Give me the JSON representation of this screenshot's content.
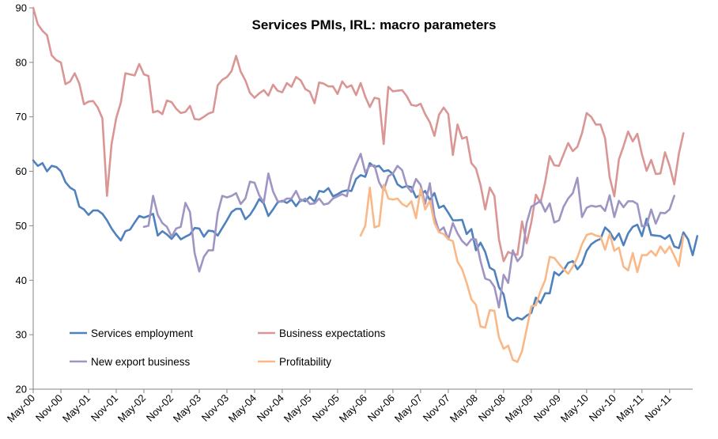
{
  "chart_data": {
    "type": "line",
    "title": "Services PMIs, IRL: macro parameters",
    "xlabel": "",
    "ylabel": "",
    "ylim": [
      20,
      90
    ],
    "yticks": [
      20,
      30,
      40,
      50,
      60,
      70,
      80,
      90
    ],
    "grid": false,
    "legend_position": "bottom-left",
    "x_tick_labels": [
      "May-00",
      "Nov-00",
      "May-01",
      "Nov-01",
      "May-02",
      "Nov-02",
      "May-03",
      "Nov-03",
      "May-04",
      "Nov-04",
      "May-05",
      "Nov-05",
      "May-06",
      "Nov-06",
      "May-07",
      "Nov-07",
      "May-08",
      "Nov-08",
      "May-09",
      "Nov-09",
      "May-10",
      "Nov-10",
      "May-11",
      "Nov-11"
    ],
    "x_start": "May-00",
    "x_end": "Apr-12",
    "series": [
      {
        "name": "Services employment",
        "color": "#4f81bd",
        "start": "May-00",
        "values": [
          62,
          61,
          61.5,
          60,
          61,
          60.8,
          60,
          58,
          57,
          56.5,
          53.5,
          53,
          52,
          52.8,
          52.8,
          52.2,
          51,
          49.5,
          48.3,
          47.3,
          49,
          49.3,
          50.6,
          51.8,
          51.5,
          51.8,
          52.2,
          48.2,
          49,
          48.4,
          47.6,
          48.6,
          47.5,
          48,
          48.4,
          49.6,
          49.5,
          48,
          49.1,
          49,
          48.2,
          49.6,
          51,
          52.5,
          53.1,
          53.1,
          51.2,
          52,
          53.3,
          54.9,
          54.1,
          51.8,
          53,
          54.3,
          54.6,
          54.2,
          54.8,
          53.6,
          54.8,
          54.5,
          55.3,
          54.4,
          56.4,
          56.2,
          56.9,
          55.4,
          55.8,
          56.3,
          56.5,
          56.4,
          58.6,
          59.3,
          59,
          61.5,
          60.8,
          61,
          60,
          60.2,
          59.5,
          57.6,
          57,
          57.3,
          57.1,
          55.2,
          55.7,
          56.4,
          54.7,
          56,
          53.3,
          53.7,
          52.4,
          51,
          51,
          51.1,
          48.5,
          49.4,
          45.5,
          46.9,
          45.2,
          42.3,
          41.8,
          38.7,
          37.4,
          33.3,
          32.6,
          33.1,
          32.8,
          33.5,
          34,
          36.8,
          35.8,
          37.6,
          37.6,
          41.5,
          40.9,
          41.8,
          43.2,
          43.5,
          42,
          43,
          45.4,
          46.6,
          47.2,
          47.6,
          49.7,
          48.9,
          47.4,
          48.6,
          46.4,
          48.6,
          49.8,
          50.2,
          48.1,
          51.3,
          48.3,
          48.2,
          48.1,
          47.6,
          48.3,
          46.2,
          45.9,
          48.8,
          47.5,
          44.6,
          48.1
        ]
      },
      {
        "name": "Business expectations",
        "color": "#d99694",
        "start": "May-00",
        "values": [
          90,
          87,
          85.8,
          85,
          81.3,
          80.4,
          80,
          76,
          76.5,
          78,
          76.1,
          72.3,
          72.8,
          72.9,
          71.7,
          69.7,
          55.5,
          65,
          69.8,
          72.6,
          78,
          77.8,
          77.6,
          79.7,
          77.8,
          77.5,
          70.8,
          71.1,
          70.5,
          73,
          72.7,
          71.5,
          70.7,
          70.9,
          72,
          69.6,
          69.5,
          70,
          70.6,
          70.9,
          75.8,
          76.8,
          77.3,
          78.4,
          81.2,
          78.3,
          76.7,
          74.4,
          73.5,
          74.3,
          74.9,
          73.9,
          75.9,
          74.8,
          74.5,
          76.2,
          75.5,
          77.3,
          76.7,
          75.1,
          74.6,
          72.5,
          76.3,
          76.1,
          75.6,
          75.6,
          74.2,
          76.5,
          75.4,
          75.8,
          74,
          76.2,
          73.7,
          71.8,
          73.5,
          73.3,
          65,
          75.5,
          74.7,
          74.8,
          74.9,
          73.8,
          72.2,
          72,
          72.4,
          70.5,
          69,
          66.5,
          70.4,
          71.7,
          70.5,
          63,
          68.6,
          66,
          66.3,
          61.5,
          60.5,
          57.5,
          53,
          57,
          55.5,
          47.5,
          43.5,
          45.2,
          44.8,
          44.7,
          50.8,
          46.8,
          50.6,
          55.7,
          54.2,
          58,
          62.8,
          61.1,
          61,
          63.1,
          65.2,
          63.7,
          64.5,
          67,
          70.7,
          70,
          68.6,
          68.6,
          66.1,
          58.9,
          55.4,
          62.2,
          64.6,
          67.3,
          65.5,
          66.9,
          63.1,
          60.1,
          62.1,
          59.5,
          59.6,
          63.5,
          61,
          57.6,
          63.2,
          67
        ]
      },
      {
        "name": "New export business",
        "color": "#a094c3",
        "start": "May-00",
        "values": [
          null,
          null,
          null,
          null,
          null,
          null,
          null,
          null,
          null,
          null,
          null,
          null,
          null,
          null,
          null,
          null,
          null,
          null,
          null,
          null,
          null,
          null,
          null,
          null,
          49.8,
          50,
          55.5,
          52,
          50.5,
          49.8,
          48,
          49.5,
          49.8,
          54.2,
          52.5,
          45,
          41.6,
          44.3,
          45.5,
          45.5,
          52.3,
          55.5,
          55.2,
          55.5,
          56,
          54,
          55,
          58.1,
          57.9,
          55.6,
          54.3,
          59.6,
          56.3,
          54.5,
          54.4,
          55,
          55,
          56.4,
          54.5,
          55,
          54,
          54.1,
          55,
          53.9,
          54.1,
          55,
          55.4,
          55.8,
          55.4,
          59.2,
          61.3,
          63.2,
          59.8,
          61,
          61.1,
          58,
          56.5,
          59.1,
          59.6,
          61,
          60.2,
          57.3,
          56.2,
          58.6,
          57.5,
          54,
          57.8,
          51.7,
          49,
          49.7,
          47.5,
          50.5,
          48.6,
          47.2,
          46.4,
          47.5,
          47.5,
          43.5,
          40.3,
          40,
          38.8,
          35,
          41,
          39.5,
          45.5,
          43.5,
          44.5,
          50.5,
          53.5,
          54,
          54.6,
          52.6,
          54.1,
          50.6,
          51,
          53.5,
          55,
          56,
          58.8,
          51.6,
          53.3,
          53.7,
          53.5,
          53.7,
          52.7,
          55.6,
          51.6,
          54.6,
          53.4,
          54.5,
          54.5,
          54,
          49.9,
          50.1,
          53,
          50.4,
          52.4,
          52.3,
          53,
          55.5
        ]
      },
      {
        "name": "Profitability",
        "color": "#fab887",
        "start": "May-00",
        "values": [
          null,
          null,
          null,
          null,
          null,
          null,
          null,
          null,
          null,
          null,
          null,
          null,
          null,
          null,
          null,
          null,
          null,
          null,
          null,
          null,
          null,
          null,
          null,
          null,
          null,
          null,
          null,
          null,
          null,
          null,
          null,
          null,
          null,
          null,
          null,
          null,
          null,
          null,
          null,
          null,
          null,
          null,
          null,
          null,
          null,
          null,
          null,
          null,
          null,
          null,
          null,
          null,
          null,
          null,
          null,
          null,
          null,
          null,
          null,
          null,
          null,
          null,
          null,
          null,
          null,
          null,
          null,
          null,
          null,
          null,
          null,
          48.2,
          50,
          57,
          49.7,
          50,
          57.5,
          55,
          54.8,
          55,
          54,
          53.5,
          54.5,
          51.4,
          56.8,
          53,
          54.6,
          50.5,
          48.8,
          48.5,
          47.5,
          47.2,
          43.4,
          42,
          39.5,
          36.5,
          35.5,
          31.5,
          31.3,
          34.5,
          34.4,
          29.5,
          27.4,
          28,
          25.4,
          25,
          27,
          31,
          35.2,
          35.4,
          38,
          40,
          44.3,
          44.1,
          43,
          42,
          41.2,
          42.5,
          44.2,
          46.6,
          48.3,
          48.6,
          48.2,
          48,
          45.6,
          48.5,
          45.4,
          46,
          42.5,
          41.8,
          45,
          41.5,
          44.6,
          44.6,
          45.4,
          44.5,
          46.2,
          45,
          46.2,
          44.5,
          42.6,
          48.2
        ]
      }
    ]
  }
}
